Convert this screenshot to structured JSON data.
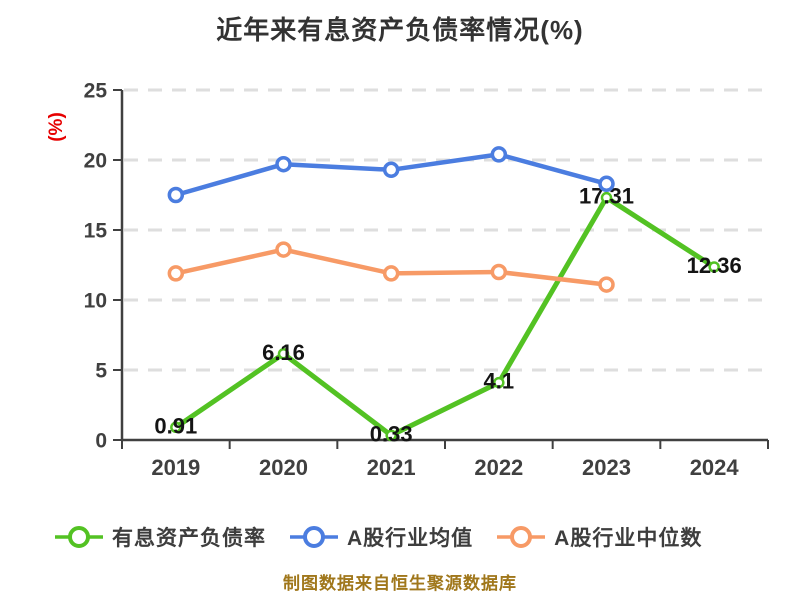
{
  "chart_data": {
    "type": "line",
    "title": "近年来有息资产负债率情况(%)",
    "ylabel": "(%)",
    "xlabel": "",
    "categories": [
      "2019",
      "2020",
      "2021",
      "2022",
      "2023",
      "2024"
    ],
    "ylim": [
      0,
      25
    ],
    "yticks": [
      0,
      5,
      10,
      15,
      20,
      25
    ],
    "grid": "horizontal-dashed",
    "legend_position": "bottom",
    "series": [
      {
        "name": "有息资产负债率",
        "color": "#53c223",
        "values": [
          0.91,
          6.16,
          0.33,
          4.1,
          17.31,
          12.36
        ],
        "point_labels": [
          "0.91",
          "6.16",
          "0.33",
          "4.1",
          "17.31",
          "12.36"
        ]
      },
      {
        "name": "A股行业均值",
        "color": "#4b7de0",
        "values": [
          17.5,
          19.7,
          19.3,
          20.4,
          18.3,
          null
        ]
      },
      {
        "name": "A股行业中位数",
        "color": "#f79a66",
        "values": [
          11.9,
          13.6,
          11.9,
          12.0,
          11.1,
          null
        ]
      }
    ]
  },
  "footer": {
    "text": "制图数据来自恒生聚源数据库"
  },
  "style": {
    "title_color": "#333333",
    "axis_color": "#404040",
    "tick_label_color": "#404040",
    "grid_color": "#dedede",
    "data_label_color": "#141414",
    "ylabel_color": "#e60000",
    "legend_text_color": "#3d3d3d",
    "footer_color": "#a0771b",
    "background": "#ffffff"
  }
}
